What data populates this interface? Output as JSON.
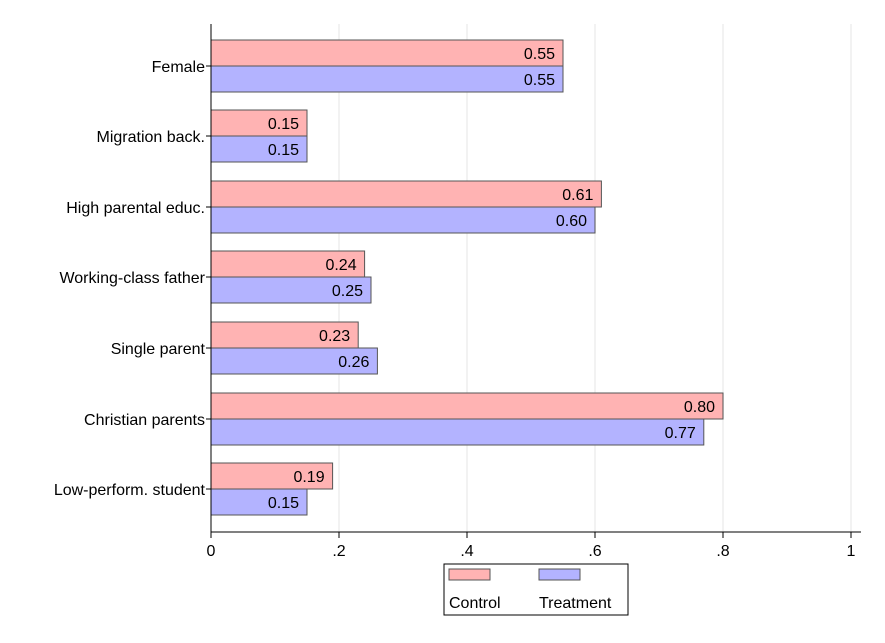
{
  "chart_data": {
    "type": "bar",
    "orientation": "horizontal",
    "categories": [
      "Female",
      "Migration back.",
      "High parental educ.",
      "Working-class father",
      "Single parent",
      "Christian parents",
      "Low-perform. student"
    ],
    "series": [
      {
        "name": "Control",
        "values": [
          0.55,
          0.15,
          0.61,
          0.24,
          0.23,
          0.8,
          0.19
        ],
        "labels": [
          "0.55",
          "0.15",
          "0.61",
          "0.24",
          "0.23",
          "0.80",
          "0.19"
        ],
        "color": "#ffb3b3"
      },
      {
        "name": "Treatment",
        "values": [
          0.55,
          0.15,
          0.6,
          0.25,
          0.26,
          0.77,
          0.15
        ],
        "labels": [
          "0.55",
          "0.15",
          "0.60",
          "0.25",
          "0.26",
          "0.77",
          "0.15"
        ],
        "color": "#b3b3ff"
      }
    ],
    "xlim": [
      0,
      1
    ],
    "ticks": [
      0,
      0.2,
      0.4,
      0.6,
      0.8,
      1
    ],
    "tick_labels": [
      "0",
      ".2",
      ".4",
      ".6",
      ".8",
      "1"
    ],
    "grid": true,
    "legend_position": "bottom-center",
    "title": "",
    "xlabel": "",
    "ylabel": ""
  }
}
